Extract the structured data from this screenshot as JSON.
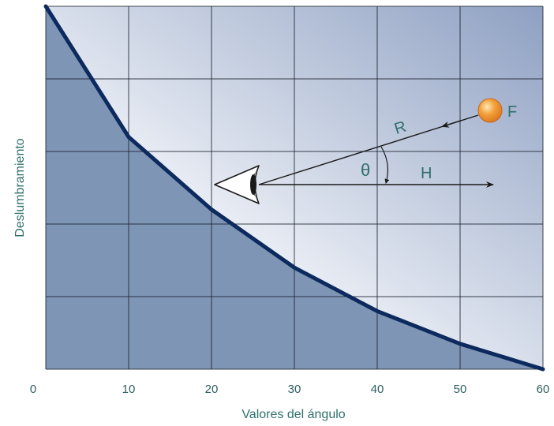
{
  "chart_data": {
    "type": "area",
    "xlabel": "Valores del ángulo",
    "ylabel": "Deslumbramiento",
    "xlim": [
      0,
      60
    ],
    "x_ticks": [
      "0",
      "10",
      "20",
      "30",
      "40",
      "50",
      "60"
    ],
    "ylim": [
      0,
      5
    ],
    "grid": true,
    "series": [
      {
        "x": [
          0,
          10,
          20,
          30,
          40,
          50,
          60
        ],
        "y": [
          5.0,
          3.2,
          2.2,
          1.4,
          0.8,
          0.35,
          0.0
        ]
      }
    ],
    "annotation": {
      "labels": {
        "source": "F",
        "distance": "R",
        "horizontal": "H",
        "angle": "θ"
      }
    }
  },
  "colors": {
    "area_fill": "#7f95b5",
    "curve": "#0c2a5e",
    "grid": "#1c2330",
    "bg_light": "#ffffff",
    "bg_dark": "#8ea0c2",
    "ball": "#f4a13c",
    "text": "#2f6f6c"
  },
  "icons": {
    "eye": "eye-icon",
    "light_source": "light-source-icon"
  }
}
